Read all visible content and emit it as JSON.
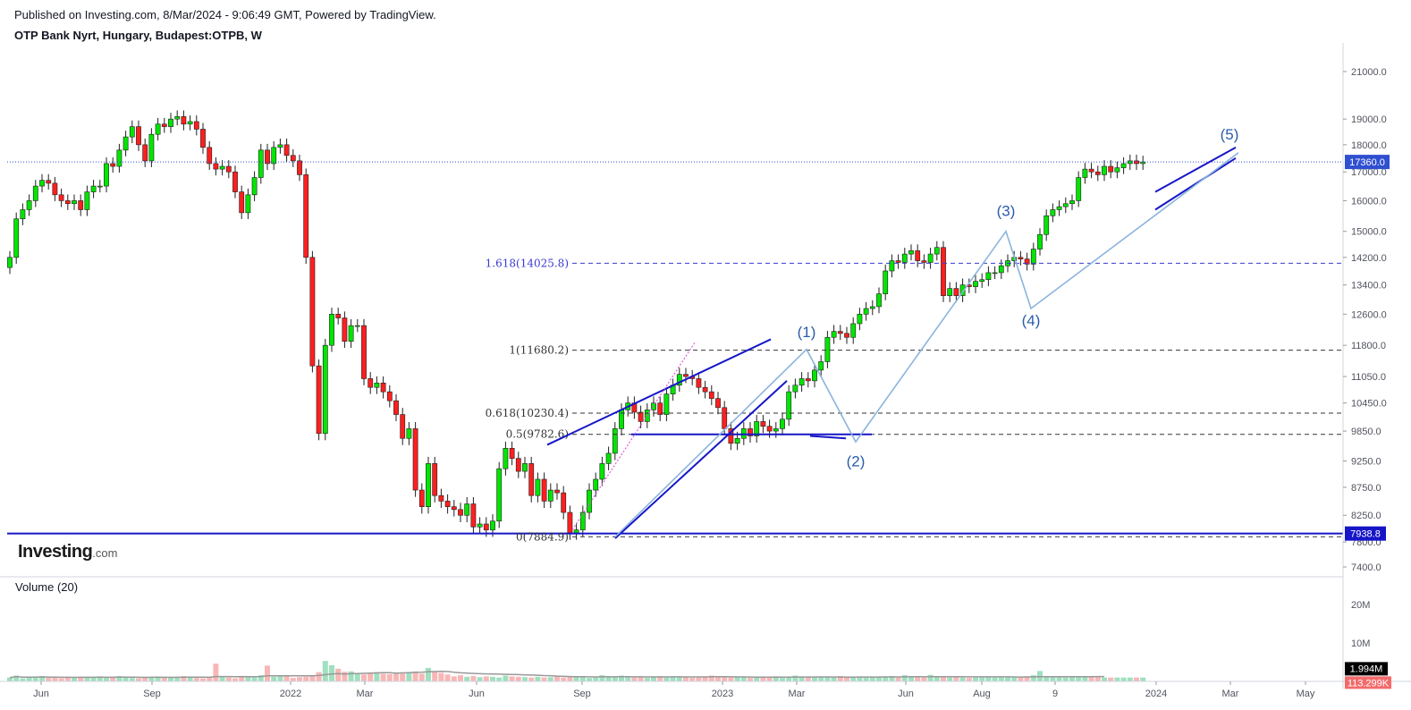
{
  "header": {
    "publish_line": "Published on Investing.com, 8/Mar/2024 - 9:06:49 GMT, Powered by TradingView.",
    "symbol_line": "OTP Bank Nyrt, Hungary, Budapest:OTPB, W"
  },
  "logo": {
    "brand": "Investing",
    "tld": ".com"
  },
  "volume_panel": {
    "label": "Volume (20)"
  },
  "colors": {
    "up": "#00e600",
    "down": "#ff1f1f",
    "vol_up": "#9fe0c0",
    "vol_down": "#f7b7b7",
    "trendline": "#1616c8",
    "wave": "#8ab4dd",
    "wave_text": "#2a5caa",
    "dotted_price": "#2f4fd1",
    "fib_line": "#333333",
    "fib_1618": "#3a3ad1",
    "pink": "#e05ad8",
    "vol_ma": "#999999"
  },
  "price_axis": {
    "ticks": [
      "21000.0",
      "19000.0",
      "18000.0",
      "17000.0",
      "16000.0",
      "15000.0",
      "14200.0",
      "13400.0",
      "12600.0",
      "11800.0",
      "11050.0",
      "10450.0",
      "9850.0",
      "9250.0",
      "8750.0",
      "8250.0",
      "7800.0",
      "7400.0"
    ],
    "last_price_label": "17360.0",
    "support_label": "7938.8"
  },
  "volume_axis": {
    "ticks": [
      "20M",
      "10M"
    ],
    "last_volume_label": "1.994M",
    "second_label": "113.299K"
  },
  "time_axis": {
    "labels": [
      "Jun",
      "Sep",
      "2022",
      "Mar",
      "Jun",
      "Sep",
      "2023",
      "Mar",
      "Jun",
      "Aug",
      "9",
      "2024",
      "Mar",
      "May"
    ]
  },
  "fibonacci": [
    {
      "label": "1.618(14025.8)",
      "value": 14025.8
    },
    {
      "label": "1(11680.2)",
      "value": 11680.2
    },
    {
      "label": "0.618(10230.4)",
      "value": 10230.4
    },
    {
      "label": "0.5(9782.6)",
      "value": 9782.6
    },
    {
      "label": "0(7884.9)",
      "value": 7884.9
    }
  ],
  "waves": [
    "(1)",
    "(2)",
    "(3)",
    "(4)",
    "(5)"
  ],
  "chart_data": {
    "type": "candlestick",
    "title": "OTP Bank Nyrt, Hungary, Budapest:OTPB, W",
    "interval": "weekly",
    "x_range": [
      "2021-05",
      "2024-05"
    ],
    "y_scale": "log",
    "ylim": [
      7400,
      21000
    ],
    "last_close": 17360,
    "support_level": 7938.8,
    "anchors": [
      {
        "label": "2021 high (Nov)",
        "approx_high": 19700
      },
      {
        "label": "2022 low (Sep/Oct)",
        "value": 7884.9
      },
      {
        "label": "wave (1) top (Feb 2023)",
        "approx": 11680
      },
      {
        "label": "wave (2) low (Apr 2023)",
        "approx": 9650
      },
      {
        "label": "wave (3) top (Aug 2023)",
        "approx": 15000
      },
      {
        "label": "wave (4) low (Aug 2023)",
        "approx": 12800
      },
      {
        "label": "wave (5) (Mar 2024)",
        "approx": 17600
      }
    ],
    "grid": true,
    "legend": "none"
  }
}
